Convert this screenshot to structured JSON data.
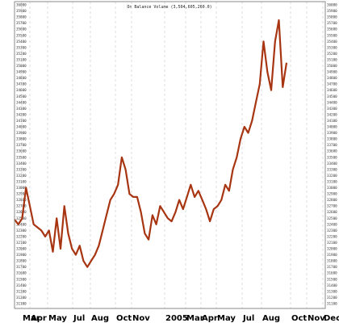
{
  "chart_data": {
    "type": "line",
    "title": "On Balance Volume (3,504,605,260.0)",
    "x_tick_labels": [
      "Mar",
      "Apr",
      "May",
      "Jul",
      "Aug",
      "Oct",
      "Nov",
      "2005",
      "Mar",
      "Apr",
      "May",
      "Jul",
      "Aug",
      "Oct",
      "Nov",
      "Dec"
    ],
    "y_tick_labels": [
      "36000",
      "35900",
      "35800",
      "35700",
      "35600",
      "35500",
      "35400",
      "35300",
      "35200",
      "35100",
      "35000",
      "34900",
      "34800",
      "34700",
      "34600",
      "34500",
      "34400",
      "34300",
      "34200",
      "34100",
      "34000",
      "33900",
      "33800",
      "33700",
      "33600",
      "33500",
      "33400",
      "33300",
      "33200",
      "33100",
      "33000",
      "32900",
      "32800",
      "32700",
      "32600",
      "32500",
      "32400",
      "32300",
      "32200",
      "32100",
      "32000",
      "31900",
      "31800",
      "31700",
      "31600",
      "31500",
      "31400",
      "31300",
      "31200",
      "31100"
    ],
    "y_axis_side": "both",
    "ylim": [
      31100,
      36000
    ],
    "grid": true,
    "series": [
      {
        "color": "#a83512",
        "values": [
          32480,
          32400,
          32500,
          33000,
          32700,
          32400,
          32350,
          32300,
          32200,
          32300,
          31950,
          32500,
          32000,
          32700,
          32250,
          32000,
          31900,
          32050,
          31800,
          31700,
          31800,
          31900,
          32050,
          32300,
          32550,
          32800,
          32900,
          33050,
          33500,
          33300,
          32900,
          32850,
          32850,
          32600,
          32250,
          32150,
          32550,
          32400,
          32700,
          32600,
          32500,
          32450,
          32600,
          32800,
          32650,
          32850,
          33050,
          32850,
          32950,
          32800,
          32650,
          32450,
          32650,
          32700,
          32800,
          33050,
          32950,
          33300,
          33500,
          33800,
          34000,
          33900,
          34100,
          34400,
          34700,
          35400,
          34900,
          34600,
          35400,
          35750,
          34650,
          35050
        ]
      }
    ]
  }
}
